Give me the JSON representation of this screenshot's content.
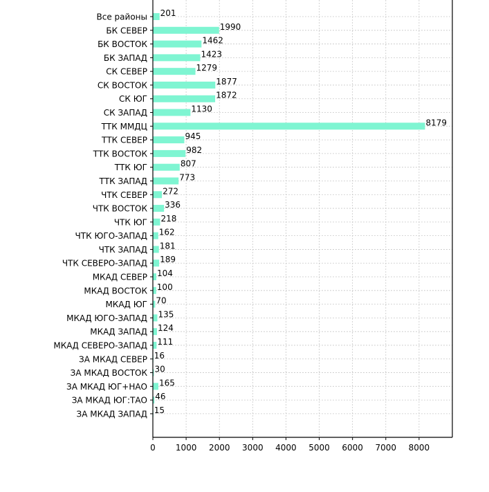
{
  "chart_data": {
    "type": "bar",
    "orientation": "horizontal",
    "title": "",
    "xlabel": "",
    "ylabel": "",
    "categories": [
      "Все районы",
      "БК СЕВЕР",
      "БК ВОСТОК",
      "БК ЗАПАД",
      "СК СЕВЕР",
      "СК ВОСТОК",
      "СК ЮГ",
      "СК ЗАПАД",
      "ТТК ММДЦ",
      "ТТК СЕВЕР",
      "ТТК ВОСТОК",
      "ТТК ЮГ",
      "ТТК ЗАПАД",
      "ЧТК СЕВЕР",
      "ЧТК ВОСТОК",
      "ЧТК ЮГ",
      "ЧТК ЮГО-ЗАПАД",
      "ЧТК ЗАПАД",
      "ЧТК СЕВЕРО-ЗАПАД",
      "МКАД СЕВЕР",
      "МКАД ВОСТОК",
      "МКАД ЮГ",
      "МКАД ЮГО-ЗАПАД",
      "МКАД ЗАПАД",
      "МКАД СЕВЕРО-ЗАПАД",
      "ЗА МКАД СЕВЕР",
      "ЗА МКАД ВОСТОК",
      "ЗА МКАД ЮГ+НАО",
      "ЗА МКАД ЮГ:ТАО",
      "ЗА МКАД ЗАПАД"
    ],
    "values": [
      201,
      1990,
      1462,
      1423,
      1279,
      1877,
      1872,
      1130,
      8179,
      945,
      982,
      807,
      773,
      272,
      336,
      218,
      162,
      181,
      189,
      104,
      100,
      70,
      135,
      124,
      111,
      16,
      30,
      165,
      46,
      15
    ],
    "xlim": [
      0,
      9000
    ],
    "xticks": [
      0,
      1000,
      2000,
      3000,
      4000,
      5000,
      6000,
      7000,
      8000
    ],
    "grid": true,
    "bar_color": "#7ff5d2",
    "grid_color": "#c8c8c8"
  }
}
